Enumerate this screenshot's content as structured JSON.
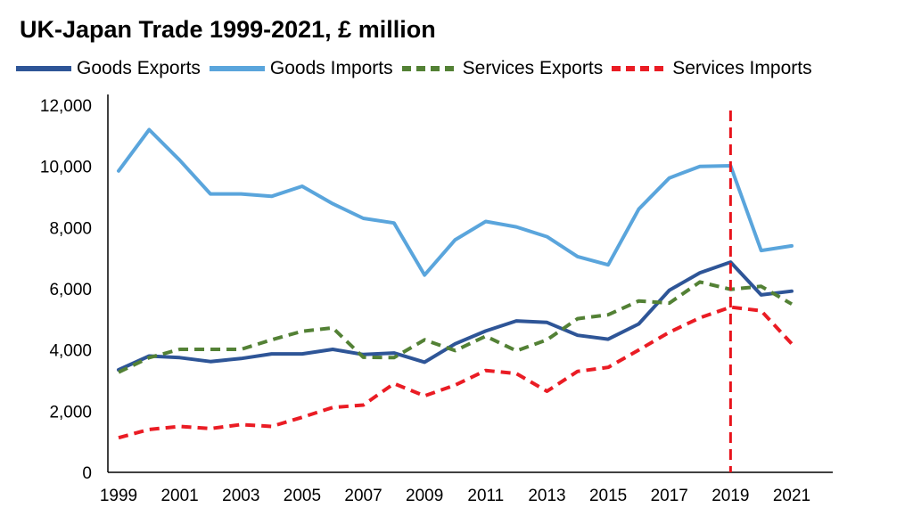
{
  "chart_data": {
    "type": "line",
    "title": "UK-Japan Trade 1999-2021, £ million",
    "xlabel": "",
    "ylabel": "",
    "x": [
      1999,
      2000,
      2001,
      2002,
      2003,
      2004,
      2005,
      2006,
      2007,
      2008,
      2009,
      2010,
      2011,
      2012,
      2013,
      2014,
      2015,
      2016,
      2017,
      2018,
      2019,
      2020,
      2021
    ],
    "xticks": [
      "1999",
      "2001",
      "2003",
      "2005",
      "2007",
      "2009",
      "2011",
      "2013",
      "2015",
      "2017",
      "2019",
      "2021"
    ],
    "ylim": [
      0,
      12000
    ],
    "yticks": [
      "0",
      "2,000",
      "4,000",
      "6,000",
      "8,000",
      "10,000",
      "12,000"
    ],
    "legend_position": "top",
    "grid": false,
    "reference_line": {
      "x": 2019,
      "color": "#e8131b",
      "style": "dashed"
    },
    "series": [
      {
        "name": "Goods Exports",
        "color": "#2e5597",
        "style": "solid",
        "values": [
          3350,
          3800,
          3750,
          3620,
          3720,
          3870,
          3870,
          4020,
          3850,
          3900,
          3600,
          4200,
          4620,
          4950,
          4900,
          4480,
          4350,
          4850,
          5950,
          6520,
          6870,
          5800,
          5920
        ]
      },
      {
        "name": "Goods Imports",
        "color": "#5aa5dc",
        "style": "solid",
        "values": [
          9850,
          11200,
          10200,
          9100,
          9100,
          9020,
          9350,
          8780,
          8300,
          8150,
          6450,
          7600,
          8200,
          8020,
          7700,
          7050,
          6780,
          8600,
          9620,
          10000,
          10020,
          7250,
          7400
        ]
      },
      {
        "name": "Services Exports",
        "color": "#538135",
        "style": "dashed",
        "values": [
          3270,
          3750,
          4020,
          4020,
          4020,
          4330,
          4610,
          4720,
          3760,
          3750,
          4330,
          3980,
          4450,
          3970,
          4330,
          5020,
          5150,
          5600,
          5530,
          6220,
          5980,
          6080,
          5500
        ]
      },
      {
        "name": "Services Imports",
        "color": "#ea1c24",
        "style": "dashed",
        "values": [
          1130,
          1400,
          1500,
          1430,
          1560,
          1500,
          1800,
          2120,
          2200,
          2900,
          2500,
          2850,
          3330,
          3230,
          2650,
          3300,
          3430,
          4000,
          4580,
          5050,
          5400,
          5280,
          4200
        ]
      }
    ]
  }
}
